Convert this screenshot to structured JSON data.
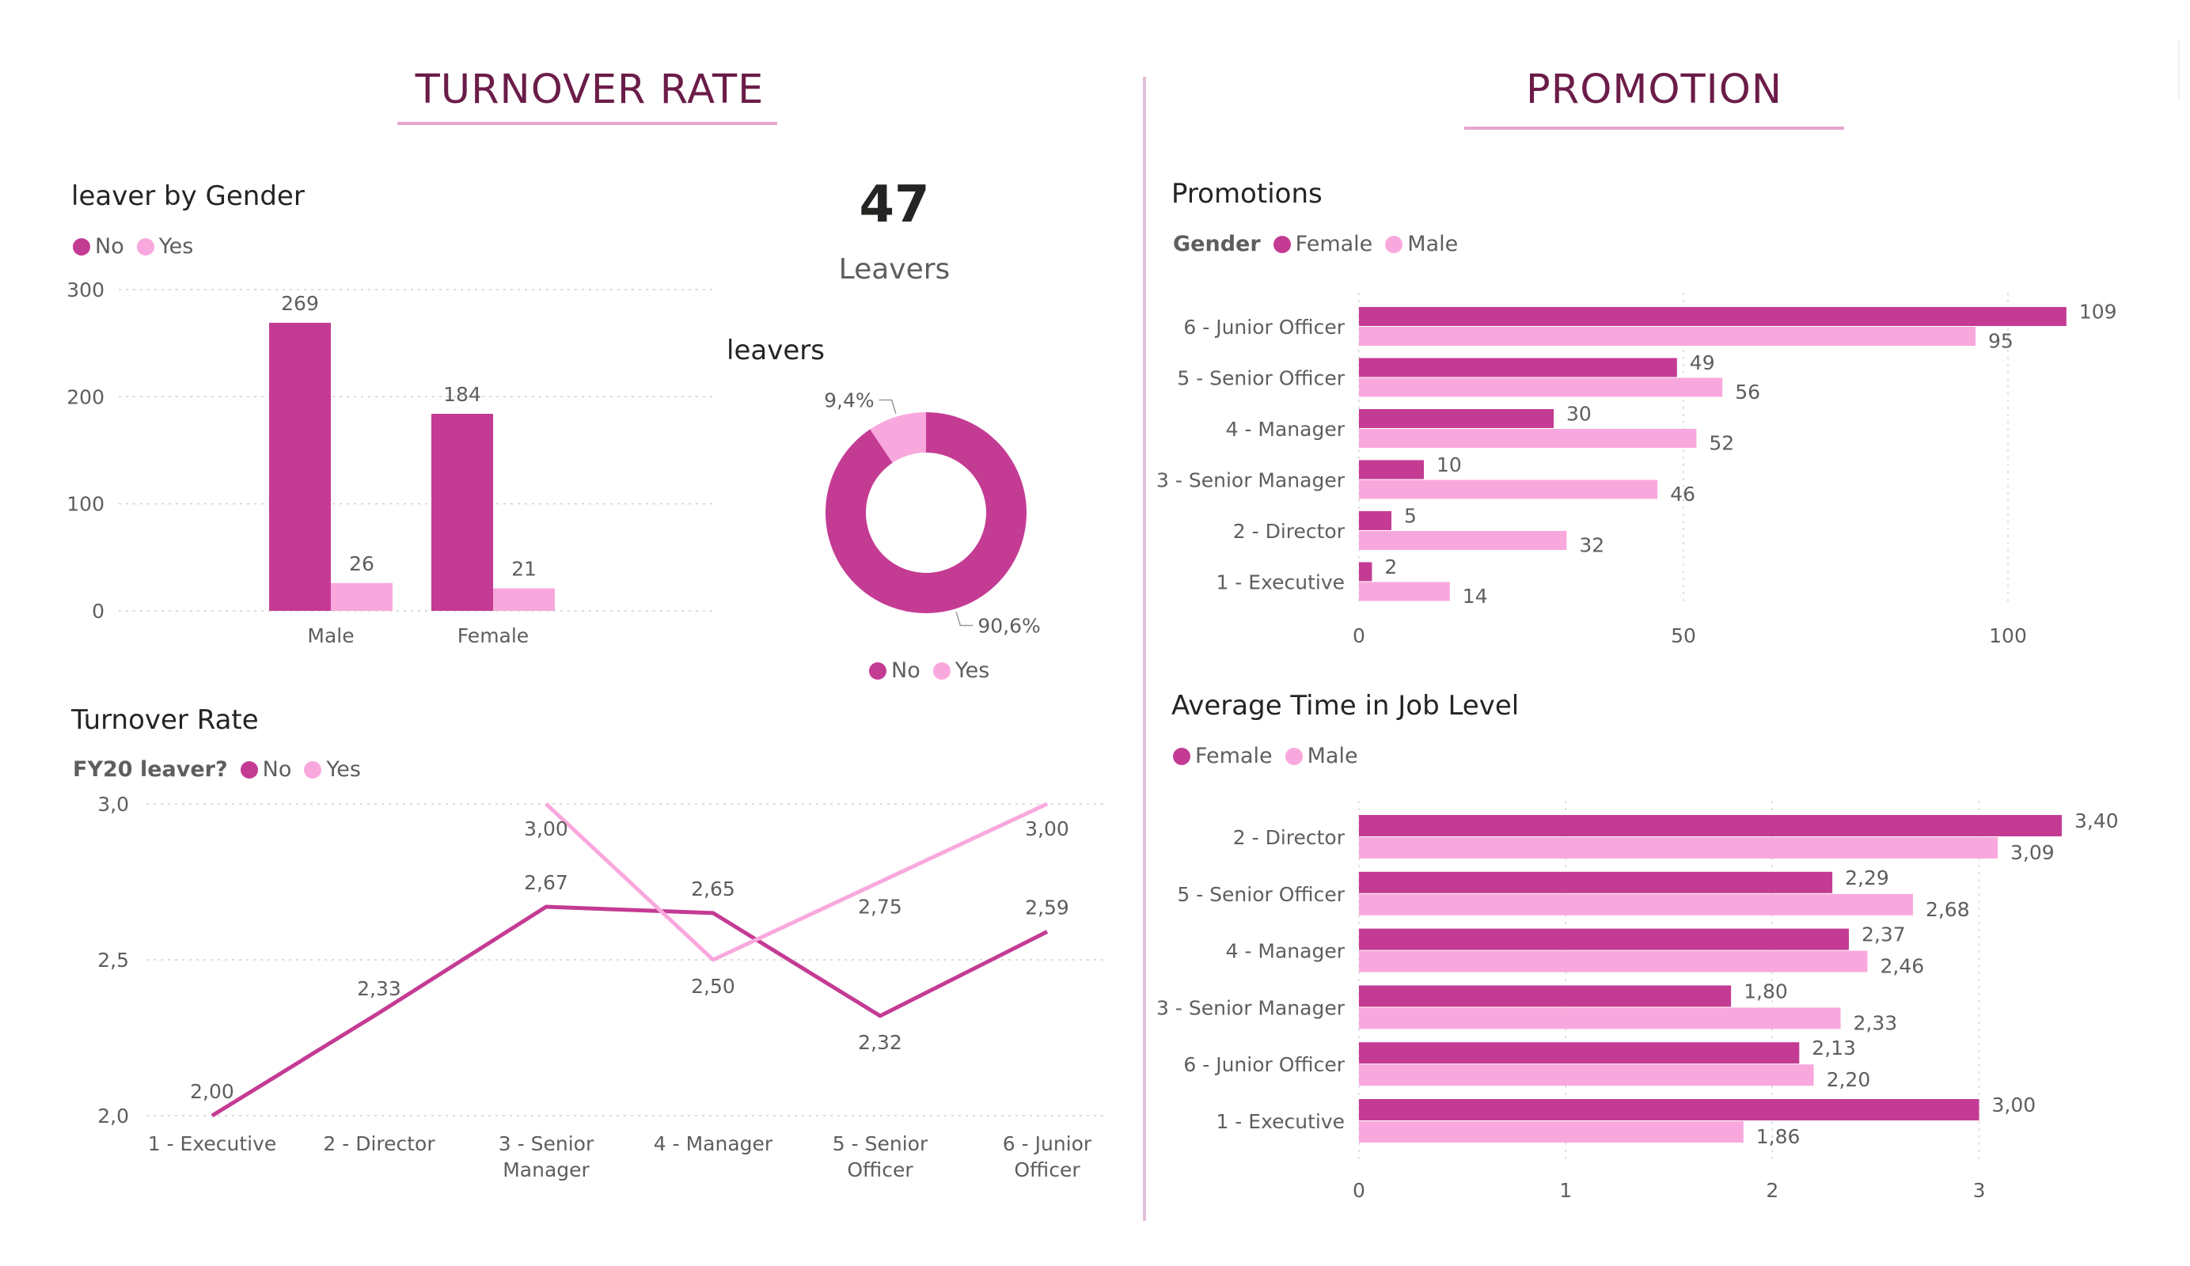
{
  "sections": {
    "turnover_title": "TURNOVER RATE",
    "promotion_title": "PROMOTION"
  },
  "colors": {
    "primary": "#c43b94",
    "secondary": "#f9a8dd"
  },
  "kpi": {
    "value": "47",
    "label": "Leavers"
  },
  "chart_data": [
    {
      "id": "leaver_by_gender",
      "type": "bar",
      "title": "leaver by Gender",
      "legend_title": "",
      "categories": [
        "Male",
        "Female"
      ],
      "series": [
        {
          "name": "No",
          "values": [
            269,
            184
          ],
          "labels": [
            "269",
            "184"
          ]
        },
        {
          "name": "Yes",
          "values": [
            26,
            21
          ],
          "labels": [
            "26",
            "21"
          ]
        }
      ],
      "ylim": [
        0,
        300
      ],
      "yticks": [
        "0",
        "100",
        "200",
        "300"
      ],
      "ytick_values": [
        0,
        100,
        200,
        300
      ],
      "grid": true,
      "legend": "top-left"
    },
    {
      "id": "leavers_donut",
      "type": "pie",
      "title": "leavers",
      "categories": [
        "No",
        "Yes"
      ],
      "values": [
        90.6,
        9.4
      ],
      "labels": [
        "90,6%",
        "9,4%"
      ],
      "legend": "bottom"
    },
    {
      "id": "promotions",
      "type": "bar",
      "orientation": "horizontal",
      "title": "Promotions",
      "legend_title": "Gender",
      "categories": [
        "6 - Junior Officer",
        "5 - Senior Officer",
        "4 - Manager",
        "3 - Senior Manager",
        "2 - Director",
        "1 - Executive"
      ],
      "series": [
        {
          "name": "Female",
          "values": [
            109,
            49,
            30,
            10,
            5,
            2
          ],
          "labels": [
            "109",
            "49",
            "30",
            "10",
            "5",
            "2"
          ]
        },
        {
          "name": "Male",
          "values": [
            95,
            56,
            52,
            46,
            32,
            14
          ],
          "labels": [
            "95",
            "56",
            "52",
            "46",
            "32",
            "14"
          ]
        }
      ],
      "xlim": [
        0,
        120
      ],
      "xticks": [
        "0",
        "50",
        "100"
      ],
      "xtick_values": [
        0,
        50,
        100
      ],
      "grid": true,
      "legend": "top-left"
    },
    {
      "id": "turnover_rate",
      "type": "line",
      "title": "Turnover Rate",
      "legend_title": "FY20 leaver?",
      "categories": [
        "1 - Executive",
        "2 - Director",
        "3 - Senior Manager",
        "4 - Manager",
        "5 - Senior Officer",
        "6 - Junior Officer"
      ],
      "category_lines": [
        [
          "1 - Executive"
        ],
        [
          "2 - Director"
        ],
        [
          "3 - Senior",
          "Manager"
        ],
        [
          "4 - Manager"
        ],
        [
          "5 - Senior",
          "Officer"
        ],
        [
          "6 - Junior",
          "Officer"
        ]
      ],
      "series": [
        {
          "name": "No",
          "values": [
            2.0,
            2.33,
            2.67,
            2.65,
            2.32,
            2.59
          ],
          "labels": [
            "2,00",
            "2,33",
            "2,67",
            "2,65",
            "2,32",
            "2,59"
          ]
        },
        {
          "name": "Yes",
          "values": [
            null,
            null,
            3.0,
            2.5,
            2.75,
            3.0
          ],
          "labels": [
            null,
            null,
            "3,00",
            "2,50",
            "2,75",
            "3,00"
          ]
        }
      ],
      "ylim": [
        2.0,
        3.0
      ],
      "yticks": [
        "2,0",
        "2,5",
        "3,0"
      ],
      "ytick_values": [
        2.0,
        2.5,
        3.0
      ],
      "grid": true,
      "legend": "top-left"
    },
    {
      "id": "avg_time_job_level",
      "type": "bar",
      "orientation": "horizontal",
      "title": "Average Time in Job Level",
      "legend_title": "",
      "categories": [
        "2 - Director",
        "5 - Senior Officer",
        "4 - Manager",
        "3 - Senior Manager",
        "6 - Junior Officer",
        "1 - Executive"
      ],
      "series": [
        {
          "name": "Female",
          "values": [
            3.4,
            2.29,
            2.37,
            1.8,
            2.13,
            3.0
          ],
          "labels": [
            "3,40",
            "2,29",
            "2,37",
            "1,80",
            "2,13",
            "3,00"
          ]
        },
        {
          "name": "Male",
          "values": [
            3.09,
            2.68,
            2.46,
            2.33,
            2.2,
            1.86
          ],
          "labels": [
            "3,09",
            "2,68",
            "2,46",
            "2,33",
            "2,20",
            "1,86"
          ]
        }
      ],
      "xlim": [
        0,
        3.4
      ],
      "xticks": [
        "0",
        "1",
        "2",
        "3"
      ],
      "xtick_values": [
        0,
        1,
        2,
        3
      ],
      "grid": true,
      "legend": "top-left"
    }
  ]
}
